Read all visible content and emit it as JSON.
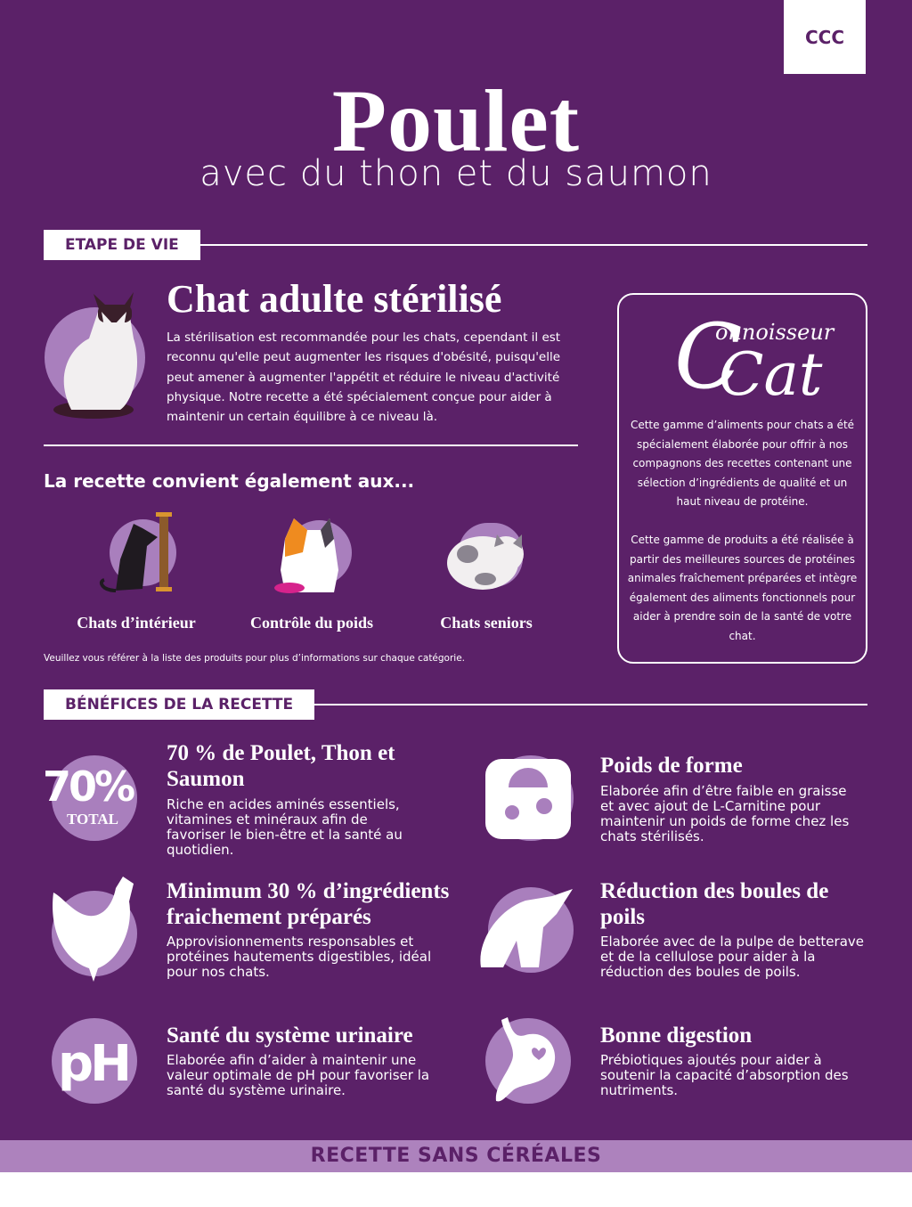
{
  "badge": "CCC",
  "header": {
    "title": "Poulet",
    "subtitle": "avec du thon et du saumon"
  },
  "life_stage": {
    "label": "ETAPE DE VIE",
    "heading": "Chat adulte stérilisé",
    "text": "La stérilisation est recommandée pour les chats, cependant il est reconnu qu'elle peut augmenter les risques d'obésité, puisqu'elle peut amener à augmenter l'appétit et réduire le niveau d'activité physique. Notre recette a été spécialement conçue pour aider à maintenir un certain équilibre à ce niveau là.",
    "also_heading": "La recette convient également aux...",
    "categories": [
      {
        "label": "Chats d’intérieur",
        "icon": "cat-scratching-post-icon"
      },
      {
        "label": "Contrôle du poids",
        "icon": "cat-food-bowl-icon"
      },
      {
        "label": "Chats seniors",
        "icon": "sleeping-cat-icon"
      }
    ],
    "note": "Veuillez vous référer à la liste des produits pour plus d’informations sur chaque catégorie."
  },
  "brand_box": {
    "logo_top": "onnoisseur",
    "logo_main": "Cat",
    "para1": "Cette gamme d’aliments pour chats a été spécialement élaborée pour offrir à nos compagnons des recettes contenant une sélection d’ingrédients de qualité et un haut niveau de protéine.",
    "para2": "Cette gamme de produits a été réalisée à partir des meilleures sources de protéines animales fraîchement préparées et intègre également des aliments fonctionnels pour aider à prendre soin de la santé de votre chat."
  },
  "benefits": {
    "label": "BÉNÉFICES DE LA RECETTE",
    "percent_icon": {
      "value": "70%",
      "caption": "TOTAL"
    },
    "items": [
      {
        "title": "70 % de Poulet, Thon et Saumon",
        "text": "Riche en acides aminés essentiels, vitamines et minéraux afin de favoriser le bien-être et la santé au quotidien.",
        "icon": "seventy-percent-icon"
      },
      {
        "title": "Poids de forme",
        "text": "Elaborée afin d’être faible en graisse et avec ajout de L-Carnitine pour maintenir un poids de forme chez les chats stérilisés.",
        "icon": "scale-paw-icon"
      },
      {
        "title": "Minimum 30 % d’ingrédients fraichement préparés",
        "text": "Approvisionnements responsables et protéines hautements digestibles, idéal pour nos chats.",
        "icon": "chicken-icon"
      },
      {
        "title": "Réduction des boules de poils",
        "text": "Elaborée avec de la pulpe de betterave et de la cellulose pour aider à la réduction des boules de poils.",
        "icon": "grooming-cat-icon"
      },
      {
        "title": "Santé du système urinaire",
        "text": "Elaborée afin d’aider à maintenir une valeur optimale de pH pour favoriser la santé du système urinaire.",
        "icon": "ph-icon"
      },
      {
        "title": "Bonne digestion",
        "text": "Prébiotiques ajoutés pour aider à soutenir la capacité d’absorption des nutriments.",
        "icon": "stomach-heart-icon"
      }
    ]
  },
  "footer_band": "RECETTE SANS CÉRÉALES",
  "colors": {
    "background": "#5b2168",
    "accent": "#a97fbd",
    "band": "#ad82bd",
    "text": "#ffffff"
  }
}
